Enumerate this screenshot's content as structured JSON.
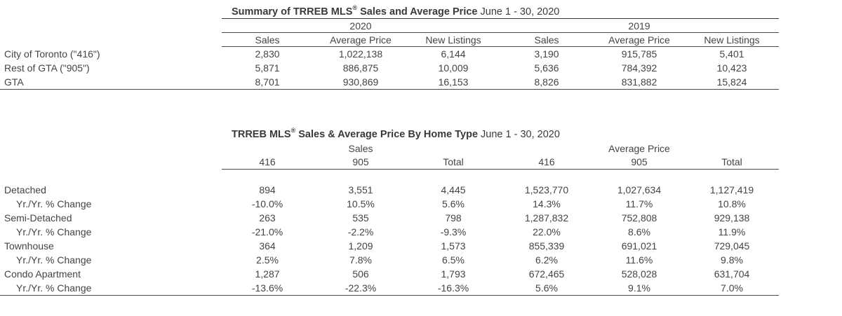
{
  "table1": {
    "title_bold": "Summary of TRREB MLS",
    "title_reg": "®",
    "title_bold2": " Sales and Average Price",
    "title_date": " June 1 - 30, 2020",
    "year_2020": "2020",
    "year_2019": "2019",
    "columns": [
      "Sales",
      "Average Price",
      "New Listings",
      "Sales",
      "Average Price",
      "New Listings"
    ],
    "rows": [
      {
        "label": "City of Toronto (\"416\")",
        "values": [
          "2,830",
          "1,022,138",
          "6,144",
          "3,190",
          "915,785",
          "5,401"
        ]
      },
      {
        "label": "Rest of GTA (\"905\")",
        "values": [
          "5,871",
          "886,875",
          "10,009",
          "5,636",
          "784,392",
          "10,423"
        ]
      },
      {
        "label": "GTA",
        "values": [
          "8,701",
          "930,869",
          "16,153",
          "8,826",
          "831,882",
          "15,824"
        ]
      }
    ]
  },
  "table2": {
    "title_bold": "TRREB MLS",
    "title_reg": "®",
    "title_bold2": " Sales & Average Price By Home Type",
    "title_date": " June 1 - 30, 2020",
    "group_sales": "Sales",
    "group_avg": "Average Price",
    "columns": [
      "416",
      "905",
      "Total",
      "416",
      "905",
      "Total"
    ],
    "rows": [
      {
        "label": "Detached",
        "sub": false,
        "values": [
          "894",
          "3,551",
          "4,445",
          "1,523,770",
          "1,027,634",
          "1,127,419"
        ]
      },
      {
        "label": "Yr./Yr. % Change",
        "sub": true,
        "values": [
          "-10.0%",
          "10.5%",
          "5.6%",
          "14.3%",
          "11.7%",
          "10.8%"
        ]
      },
      {
        "label": "Semi-Detached",
        "sub": false,
        "values": [
          "263",
          "535",
          "798",
          "1,287,832",
          "752,808",
          "929,138"
        ]
      },
      {
        "label": "Yr./Yr. % Change",
        "sub": true,
        "values": [
          "-21.0%",
          "-2.2%",
          "-9.3%",
          "22.0%",
          "8.6%",
          "11.9%"
        ]
      },
      {
        "label": "Townhouse",
        "sub": false,
        "values": [
          "364",
          "1,209",
          "1,573",
          "855,339",
          "691,021",
          "729,045"
        ]
      },
      {
        "label": "Yr./Yr. % Change",
        "sub": true,
        "values": [
          "2.5%",
          "7.8%",
          "6.5%",
          "6.2%",
          "11.6%",
          "9.8%"
        ]
      },
      {
        "label": "Condo Apartment",
        "sub": false,
        "values": [
          "1,287",
          "506",
          "1,793",
          "672,465",
          "528,028",
          "631,704"
        ]
      },
      {
        "label": "Yr./Yr. % Change",
        "sub": true,
        "values": [
          "-13.6%",
          "-22.3%",
          "-16.3%",
          "5.6%",
          "9.1%",
          "7.0%"
        ]
      }
    ]
  }
}
